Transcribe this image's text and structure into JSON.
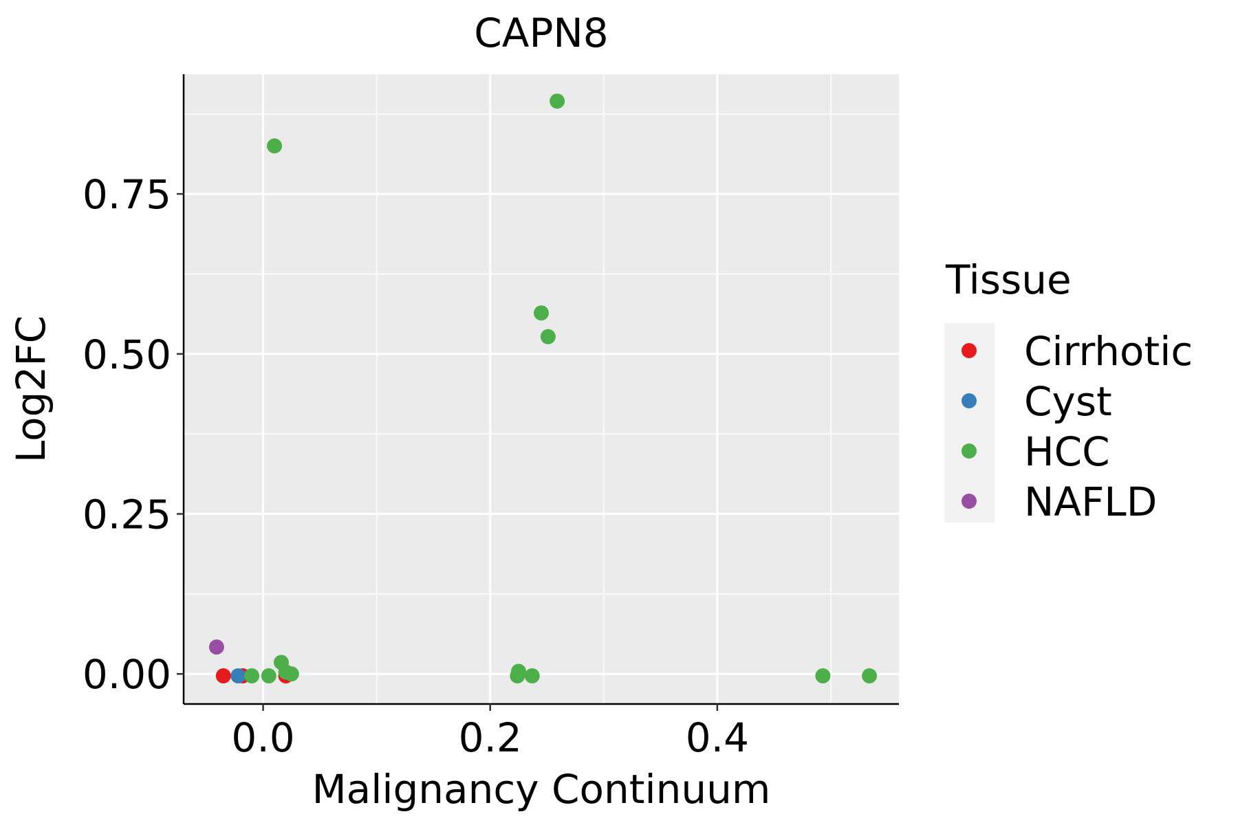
{
  "chart_data": {
    "type": "scatter",
    "title": "CAPN8",
    "xlabel": "Malignancy Continuum",
    "ylabel": "Log2FC",
    "xlim": [
      -0.07,
      0.56
    ],
    "ylim": [
      -0.047,
      0.937
    ],
    "xticks": [
      {
        "value": 0.0,
        "label": "0.0"
      },
      {
        "value": 0.2,
        "label": "0.2"
      },
      {
        "value": 0.4,
        "label": "0.4"
      }
    ],
    "x_minor_grid": [
      0.1,
      0.3,
      0.5
    ],
    "yticks": [
      {
        "value": 0.0,
        "label": "0.00"
      },
      {
        "value": 0.25,
        "label": "0.25"
      },
      {
        "value": 0.5,
        "label": "0.50"
      },
      {
        "value": 0.75,
        "label": "0.75"
      }
    ],
    "y_minor_grid": [
      0.125,
      0.375,
      0.625,
      0.875
    ],
    "grid": true,
    "legend": {
      "title": "Tissue",
      "position": "right"
    },
    "series": [
      {
        "name": "Cirrhotic",
        "color": "#E41A1C",
        "points": [
          {
            "x": -0.035,
            "y": -0.003
          },
          {
            "x": -0.018,
            "y": -0.003
          },
          {
            "x": 0.02,
            "y": -0.003
          }
        ]
      },
      {
        "name": "Cyst",
        "color": "#377EB8",
        "points": [
          {
            "x": -0.022,
            "y": -0.003
          }
        ]
      },
      {
        "name": "HCC",
        "color": "#4DAF4A",
        "points": [
          {
            "x": 0.259,
            "y": 0.895
          },
          {
            "x": 0.01,
            "y": 0.825
          },
          {
            "x": 0.245,
            "y": 0.564
          },
          {
            "x": 0.251,
            "y": 0.527
          },
          {
            "x": -0.01,
            "y": -0.003
          },
          {
            "x": 0.005,
            "y": -0.003
          },
          {
            "x": 0.016,
            "y": 0.018
          },
          {
            "x": 0.02,
            "y": 0.003
          },
          {
            "x": 0.025,
            "y": 0.0
          },
          {
            "x": 0.225,
            "y": 0.004
          },
          {
            "x": 0.224,
            "y": -0.003
          },
          {
            "x": 0.237,
            "y": -0.003
          },
          {
            "x": 0.493,
            "y": -0.003
          },
          {
            "x": 0.534,
            "y": -0.003
          }
        ]
      },
      {
        "name": "NAFLD",
        "color": "#984EA3",
        "points": [
          {
            "x": -0.041,
            "y": 0.042
          }
        ]
      }
    ]
  }
}
